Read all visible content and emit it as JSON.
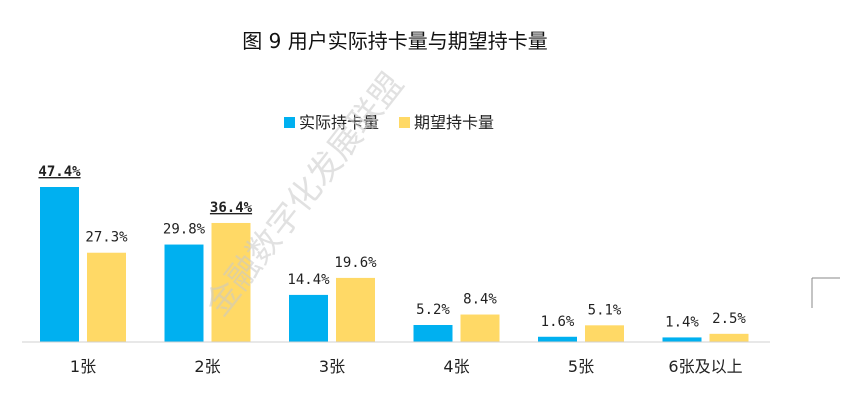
{
  "chart_data": {
    "type": "bar",
    "title": "图 9 用户实际持卡量与期望持卡量",
    "categories": [
      "1张",
      "2张",
      "3张",
      "4张",
      "5张",
      "6张及以上"
    ],
    "series": [
      {
        "name": "实际持卡量",
        "color": "#00B0F0",
        "values": [
          47.4,
          29.8,
          14.4,
          5.2,
          1.6,
          1.4
        ],
        "labels": [
          "47.4%",
          "29.8%",
          "14.4%",
          "5.2%",
          "1.6%",
          "1.4%"
        ]
      },
      {
        "name": "期望持卡量",
        "color": "#FFD966",
        "values": [
          27.3,
          36.4,
          19.6,
          8.4,
          5.1,
          2.5
        ],
        "labels": [
          "27.3%",
          "36.4%",
          "19.6%",
          "8.4%",
          "5.1%",
          "2.5%"
        ]
      }
    ],
    "highlighted_labels": [
      "47.4%",
      "36.4%"
    ],
    "ylim": [
      0,
      50
    ],
    "xlabel": "",
    "ylabel": "",
    "legend_position": "top-center",
    "grid": false,
    "watermark": "金融数字化发展联盟"
  }
}
